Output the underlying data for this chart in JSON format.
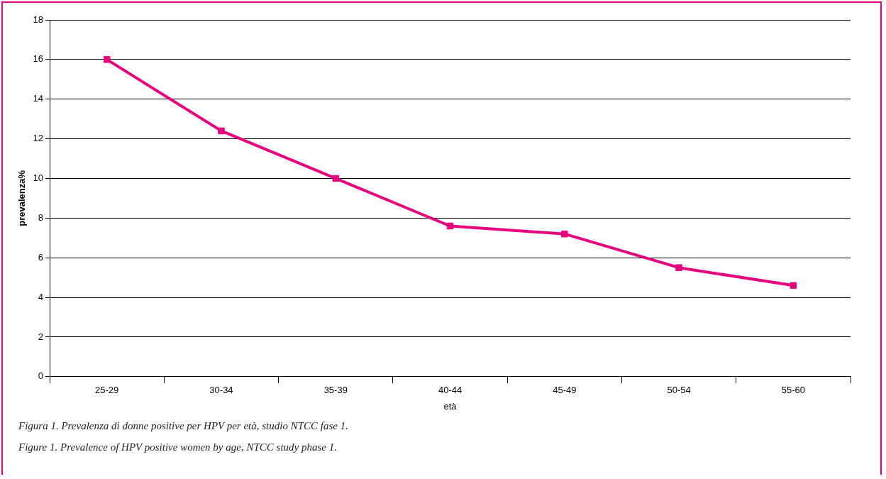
{
  "chart_data": {
    "type": "line",
    "categories": [
      "25-29",
      "30-34",
      "35-39",
      "40-44",
      "45-49",
      "50-54",
      "55-60"
    ],
    "series": [
      {
        "color": "#e5007d",
        "values": [
          16,
          12.4,
          10,
          7.6,
          7.2,
          5.5,
          4.6
        ]
      }
    ],
    "ylim": [
      0,
      18
    ],
    "yticks": [
      0,
      2,
      4,
      6,
      8,
      10,
      12,
      14,
      16,
      18
    ],
    "xlabel": "età",
    "ylabel": "prevalenza%",
    "grid": "y",
    "legend": false,
    "marker": "square",
    "line_style": "solid",
    "annotations": [
      "Figura 1. Prevalenza di donne positive per HPV per età, studio NTCC fase 1.",
      "Figure 1. Prevalence of HPV positive women by age, NTCC study phase 1."
    ]
  }
}
